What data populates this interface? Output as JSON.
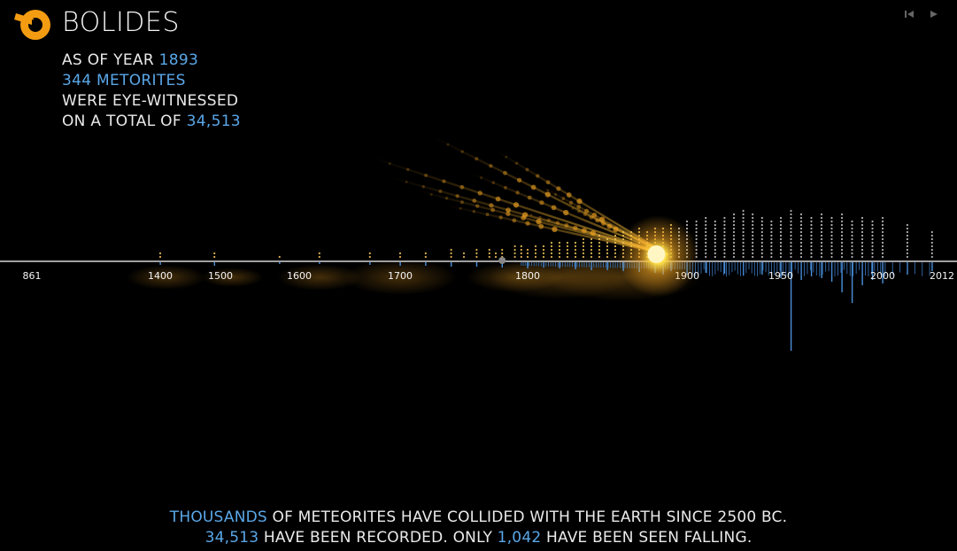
{
  "app": {
    "title": "BOLIDES"
  },
  "stats": {
    "line1_prefix": "AS OF YEAR ",
    "year": "1893",
    "line2": "344 METORITES",
    "line3": "WERE EYE-WITNESSED",
    "line4_prefix": "ON A TOTAL OF ",
    "total": "34,513"
  },
  "controls": {
    "rewind_icon": "skip-back-icon",
    "play_icon": "play-icon"
  },
  "footer": {
    "line1_highlight": "THOUSANDS",
    "line1_rest": " OF METEORITES HAVE COLLIDED WITH THE EARTH SINCE 2500 BC.",
    "line2_count": "34,513",
    "line2_mid": " HAVE BEEN RECORDED. ONLY ",
    "line2_seen": "1,042",
    "line2_end": " HAVE BEEN SEEN FALLING."
  },
  "colors": {
    "accent": "#5aa7e8",
    "meteor": "#f5a623",
    "glow": "#ffd54a",
    "logo": "#f39c12",
    "axis": "#ffffff"
  },
  "chart_data": {
    "type": "timeline-bar",
    "x_ticks": [
      861,
      1400,
      1500,
      1600,
      1700,
      1800,
      1900,
      1950,
      2000,
      2012
    ],
    "current_year": 1893,
    "above_axis_series": "eye-witnessed falls per year (dot stacks)",
    "below_axis_series": "recorded meteorites per year (blue bars)",
    "falls": [
      [
        1400,
        2
      ],
      [
        1490,
        2
      ],
      [
        1575,
        1
      ],
      [
        1620,
        2
      ],
      [
        1670,
        2
      ],
      [
        1700,
        2
      ],
      [
        1720,
        2
      ],
      [
        1740,
        3
      ],
      [
        1750,
        2
      ],
      [
        1760,
        3
      ],
      [
        1770,
        3
      ],
      [
        1775,
        2
      ],
      [
        1780,
        3
      ],
      [
        1790,
        4
      ],
      [
        1795,
        4
      ],
      [
        1800,
        3
      ],
      [
        1805,
        4
      ],
      [
        1810,
        4
      ],
      [
        1815,
        5
      ],
      [
        1820,
        5
      ],
      [
        1825,
        5
      ],
      [
        1830,
        5
      ],
      [
        1835,
        6
      ],
      [
        1840,
        6
      ],
      [
        1845,
        7
      ],
      [
        1850,
        6
      ],
      [
        1855,
        7
      ],
      [
        1860,
        8
      ],
      [
        1865,
        8
      ],
      [
        1870,
        9
      ],
      [
        1875,
        8
      ],
      [
        1880,
        9
      ],
      [
        1885,
        9
      ],
      [
        1890,
        10
      ],
      [
        1895,
        9
      ],
      [
        1900,
        11
      ],
      [
        1905,
        11
      ],
      [
        1910,
        12
      ],
      [
        1915,
        11
      ],
      [
        1920,
        12
      ],
      [
        1925,
        13
      ],
      [
        1930,
        14
      ],
      [
        1935,
        13
      ],
      [
        1940,
        12
      ],
      [
        1945,
        11
      ],
      [
        1950,
        12
      ],
      [
        1955,
        14
      ],
      [
        1960,
        13
      ],
      [
        1965,
        12
      ],
      [
        1970,
        13
      ],
      [
        1975,
        12
      ],
      [
        1980,
        13
      ],
      [
        1985,
        11
      ],
      [
        1990,
        12
      ],
      [
        1995,
        11
      ],
      [
        2000,
        12
      ],
      [
        2005,
        10
      ],
      [
        2010,
        8
      ]
    ],
    "recorded": [
      [
        1400,
        3
      ],
      [
        1490,
        4
      ],
      [
        1575,
        2
      ],
      [
        1620,
        2
      ],
      [
        1670,
        3
      ],
      [
        1700,
        4
      ],
      [
        1720,
        4
      ],
      [
        1740,
        5
      ],
      [
        1760,
        5
      ],
      [
        1780,
        6
      ],
      [
        1800,
        7
      ],
      [
        1810,
        6
      ],
      [
        1820,
        7
      ],
      [
        1830,
        8
      ],
      [
        1840,
        9
      ],
      [
        1850,
        9
      ],
      [
        1860,
        10
      ],
      [
        1870,
        11
      ],
      [
        1880,
        12
      ],
      [
        1885,
        14
      ],
      [
        1890,
        10
      ],
      [
        1900,
        14
      ],
      [
        1910,
        12
      ],
      [
        1920,
        13
      ],
      [
        1930,
        15
      ],
      [
        1940,
        14
      ],
      [
        1950,
        18
      ],
      [
        1955,
        100
      ],
      [
        1960,
        20
      ],
      [
        1965,
        16
      ],
      [
        1970,
        18
      ],
      [
        1975,
        22
      ],
      [
        1980,
        34
      ],
      [
        1985,
        46
      ],
      [
        1990,
        26
      ],
      [
        1995,
        20
      ],
      [
        2000,
        24
      ],
      [
        2005,
        14
      ],
      [
        2010,
        10
      ]
    ]
  }
}
